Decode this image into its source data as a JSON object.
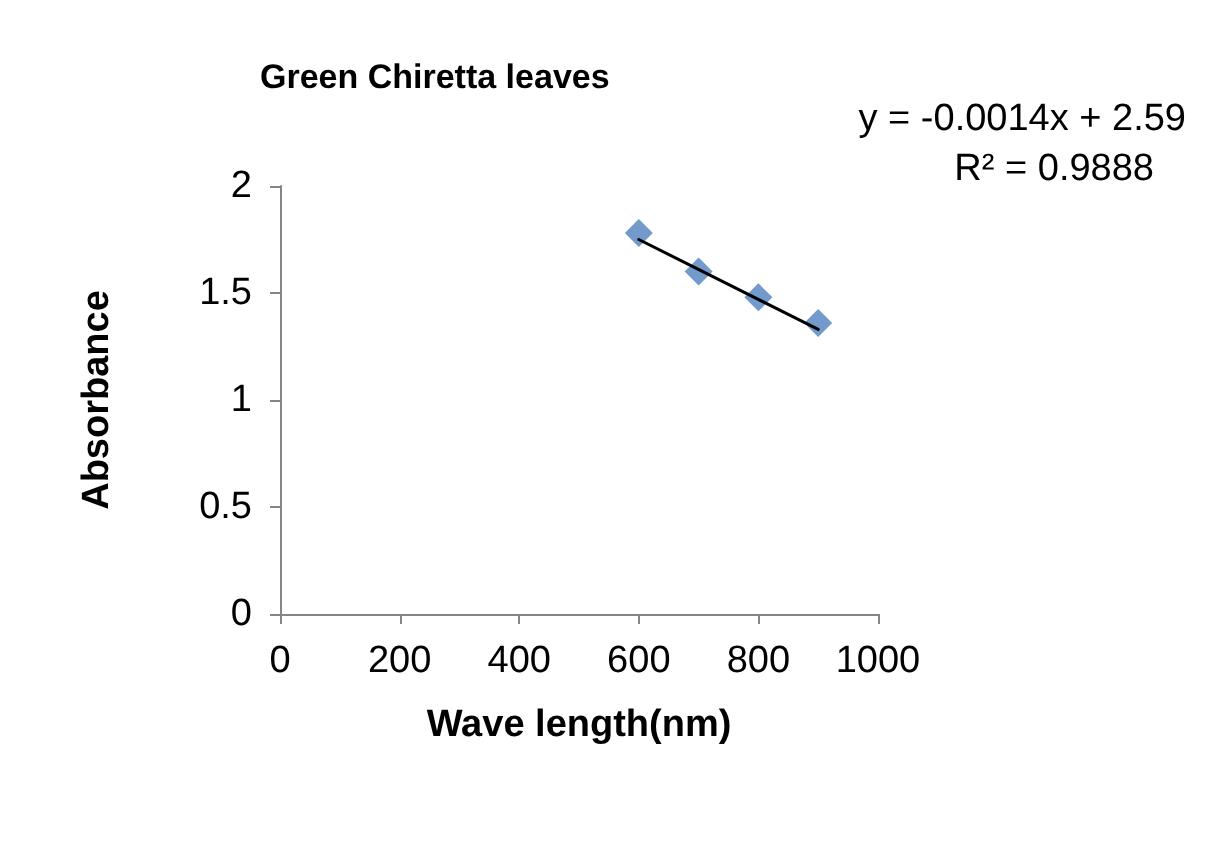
{
  "chart_data": {
    "type": "scatter",
    "title": "Green Chiretta leaves",
    "xlabel": "Wave length(nm)",
    "ylabel": "Absorbance",
    "x": [
      600,
      700,
      800,
      900
    ],
    "series": [
      {
        "color": "#4f81bd",
        "values": [
          1.78,
          1.6,
          1.48,
          1.36
        ],
        "marker": "diamond"
      },
      {
        "type": "line",
        "color": "#000000",
        "x": [
          600,
          900
        ],
        "values": [
          1.75,
          1.33
        ],
        "marker": "none",
        "line_style": "solid"
      }
    ],
    "annotations": [
      "y = -0.0014x + 2.59",
      "R² = 0.9888"
    ],
    "xlim": [
      0,
      1000
    ],
    "xticks": [
      0,
      200,
      400,
      600,
      800,
      1000
    ],
    "ylim": [
      0,
      2
    ],
    "yticks": [
      0,
      0.5,
      1,
      1.5,
      2
    ],
    "grid": false
  }
}
